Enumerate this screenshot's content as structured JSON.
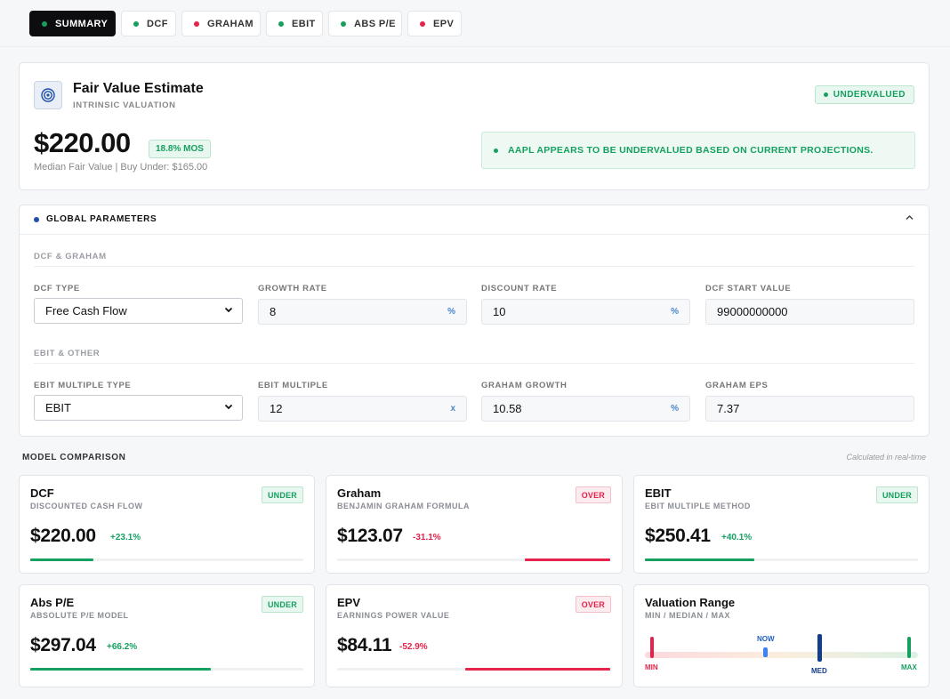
{
  "tabs": [
    {
      "label": "SUMMARY",
      "dot": "#16a060",
      "active": true
    },
    {
      "label": "DCF",
      "dot": "#16a060"
    },
    {
      "label": "GRAHAM",
      "dot": "#e5234b"
    },
    {
      "label": "EBIT",
      "dot": "#16a060"
    },
    {
      "label": "ABS P/E",
      "dot": "#16a060"
    },
    {
      "label": "EPV",
      "dot": "#e5234b"
    }
  ],
  "hero": {
    "title": "Fair Value Estimate",
    "subtitle": "INTRINSIC VALUATION",
    "status": "UNDERVALUED",
    "price": "$220.00",
    "mos": "18.8% MOS",
    "median_line": "Median Fair Value | Buy Under: $165.00",
    "alert": "AAPL APPEARS TO BE UNDERVALUED BASED ON CURRENT PROJECTIONS."
  },
  "params": {
    "title": "GLOBAL PARAMETERS",
    "section1": "DCF & GRAHAM",
    "section2": "EBIT & OTHER",
    "fields": [
      {
        "label": "DCF TYPE",
        "value": "Free Cash Flow",
        "type": "select"
      },
      {
        "label": "GROWTH RATE",
        "value": "8",
        "suffix": "%"
      },
      {
        "label": "DISCOUNT RATE",
        "value": "10",
        "suffix": "%"
      },
      {
        "label": "DCF START VALUE",
        "value": "99000000000"
      },
      {
        "label": "EBIT MULTIPLE TYPE",
        "value": "EBIT",
        "type": "select"
      },
      {
        "label": "EBIT MULTIPLE",
        "value": "12",
        "suffix": "x"
      },
      {
        "label": "GRAHAM GROWTH",
        "value": "10.58",
        "suffix": "%"
      },
      {
        "label": "GRAHAM EPS",
        "value": "7.37"
      }
    ]
  },
  "comparison": {
    "title": "MODEL COMPARISON",
    "note": "Calculated in real-time",
    "models": [
      {
        "name": "DCF",
        "sub": "DISCOUNTED CASH FLOW",
        "badge": "UNDER",
        "price": "$220.00",
        "delta": "+23.1%",
        "bar_fraction": 0.23,
        "bar_side": "left"
      },
      {
        "name": "Graham",
        "sub": "BENJAMIN GRAHAM FORMULA",
        "badge": "OVER",
        "price": "$123.07",
        "delta": "-31.1%",
        "bar_fraction": 0.31,
        "bar_side": "right"
      },
      {
        "name": "EBIT",
        "sub": "EBIT MULTIPLE METHOD",
        "badge": "UNDER",
        "price": "$250.41",
        "delta": "+40.1%",
        "bar_fraction": 0.4,
        "bar_side": "left"
      },
      {
        "name": "Abs P/E",
        "sub": "ABSOLUTE P/E MODEL",
        "badge": "UNDER",
        "price": "$297.04",
        "delta": "+66.2%",
        "bar_fraction": 0.66,
        "bar_side": "left"
      },
      {
        "name": "EPV",
        "sub": "EARNINGS POWER VALUE",
        "badge": "OVER",
        "price": "$84.11",
        "delta": "-52.9%",
        "bar_fraction": 0.53,
        "bar_side": "right"
      }
    ],
    "range": {
      "name": "Valuation Range",
      "sub": "MIN / MEDIAN / MAX",
      "min_label": "MIN",
      "now_label": "NOW",
      "med_label": "MED",
      "max_label": "MAX",
      "now_fraction": 0.43,
      "med_fraction": 0.63
    }
  },
  "colors": {
    "green": "#16a060",
    "red": "#e5234b",
    "blue": "#1f4fa8"
  }
}
